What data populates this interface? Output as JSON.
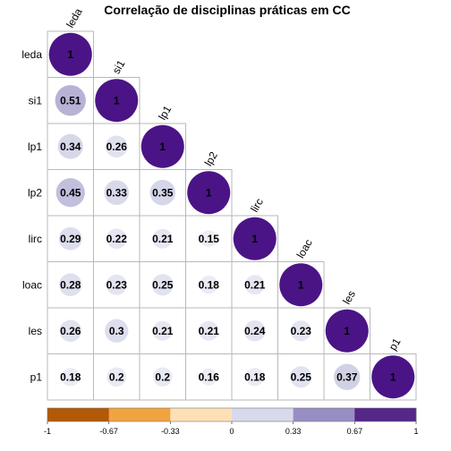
{
  "chart_data": {
    "type": "heatmap",
    "title": "Correlação de disciplinas práticas em CC",
    "variables": [
      "leda",
      "si1",
      "lp1",
      "lp2",
      "lirc",
      "loac",
      "les",
      "p1"
    ],
    "matrix_lower": [
      [
        "1"
      ],
      [
        "0.51",
        "1"
      ],
      [
        "0.34",
        "0.26",
        "1"
      ],
      [
        "0.45",
        "0.33",
        "0.35",
        "1"
      ],
      [
        "0.29",
        "0.22",
        "0.21",
        "0.15",
        "1"
      ],
      [
        "0.28",
        "0.23",
        "0.25",
        "0.18",
        "0.21",
        "1"
      ],
      [
        "0.26",
        "0.3",
        "0.21",
        "0.21",
        "0.24",
        "0.23",
        "1"
      ],
      [
        "0.18",
        "0.2",
        "0.2",
        "0.16",
        "0.18",
        "0.25",
        "0.37",
        "1"
      ]
    ],
    "legend": {
      "ticks": [
        "-1",
        "-0.67",
        "-0.33",
        "0",
        "0.33",
        "0.67",
        "1"
      ],
      "colors": [
        "#b35806",
        "#f1a340",
        "#fee0b6",
        "#d8daeb",
        "#998ec3",
        "#542788"
      ]
    },
    "value_range": [
      -1,
      1
    ],
    "glyph": "circle",
    "layout": "lower-triangle"
  }
}
